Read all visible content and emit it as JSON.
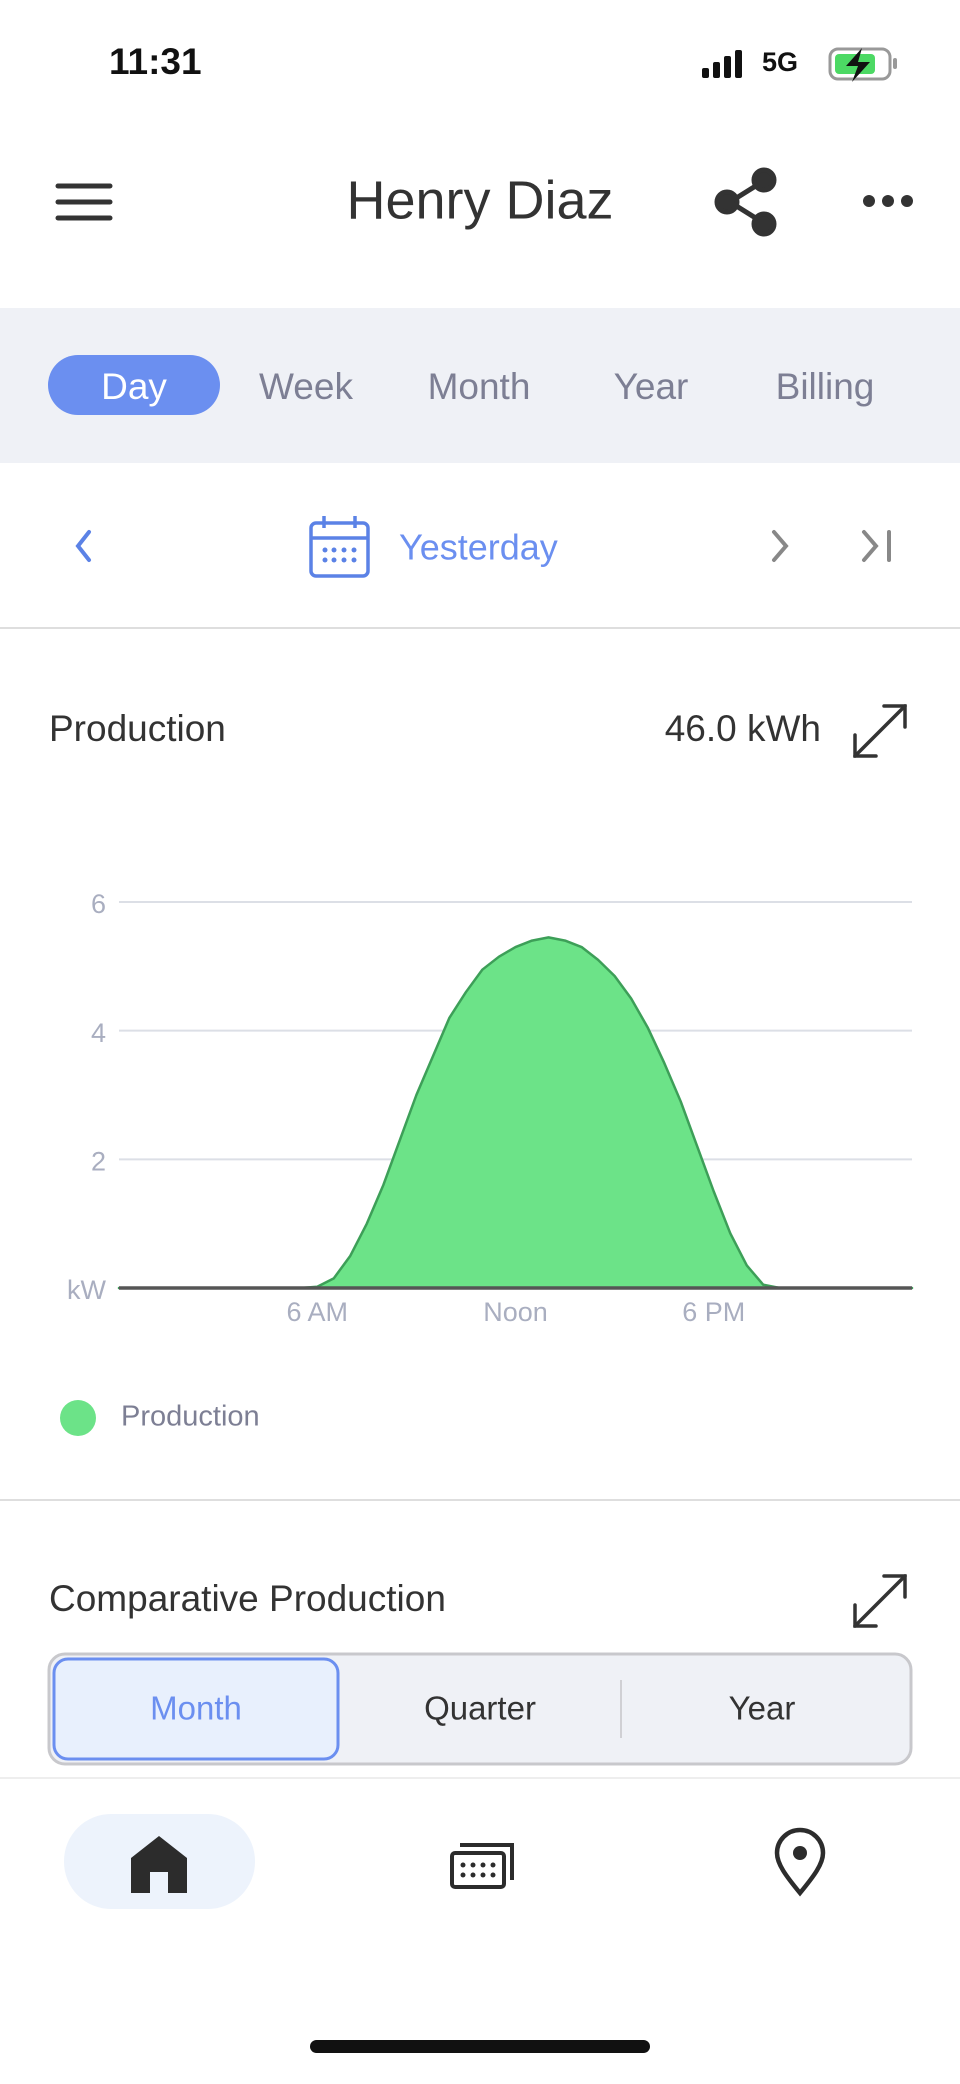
{
  "status_bar": {
    "time": "11:31",
    "network": "5G"
  },
  "header": {
    "title": "Henry Diaz"
  },
  "tabs": [
    "Day",
    "Week",
    "Month",
    "Year",
    "Billing"
  ],
  "date_nav": {
    "label": "Yesterday"
  },
  "chart_data": {
    "type": "area",
    "title": "Production",
    "total": "46.0 kWh",
    "x": [
      0,
      5,
      5.5,
      6,
      6.5,
      7,
      7.5,
      8,
      8.5,
      9,
      9.5,
      10,
      10.5,
      11,
      11.5,
      12,
      12.5,
      13,
      13.5,
      14,
      14.5,
      15,
      15.5,
      16,
      16.5,
      17,
      17.5,
      18,
      18.5,
      19,
      19.5,
      20,
      21,
      24
    ],
    "series": [
      {
        "name": "Production",
        "color": "#6ce388",
        "values": [
          0,
          0,
          0,
          0.02,
          0.15,
          0.5,
          1.0,
          1.6,
          2.3,
          3.0,
          3.6,
          4.2,
          4.6,
          4.95,
          5.15,
          5.3,
          5.4,
          5.45,
          5.4,
          5.3,
          5.1,
          4.85,
          4.5,
          4.05,
          3.5,
          2.9,
          2.2,
          1.5,
          0.85,
          0.35,
          0.05,
          0,
          0,
          0
        ]
      }
    ],
    "xlim": [
      0,
      24
    ],
    "xticks": [
      {
        "value": 6,
        "label": "6 AM"
      },
      {
        "value": 12,
        "label": "Noon"
      },
      {
        "value": 18,
        "label": "6 PM"
      }
    ],
    "ylim": [
      0,
      6
    ],
    "yticks": [
      {
        "value": 0,
        "label": "kW"
      },
      2,
      4,
      6
    ],
    "grid": true
  },
  "comparative": {
    "title": "Comparative Production",
    "options": [
      "Month",
      "Quarter",
      "Year"
    ]
  }
}
